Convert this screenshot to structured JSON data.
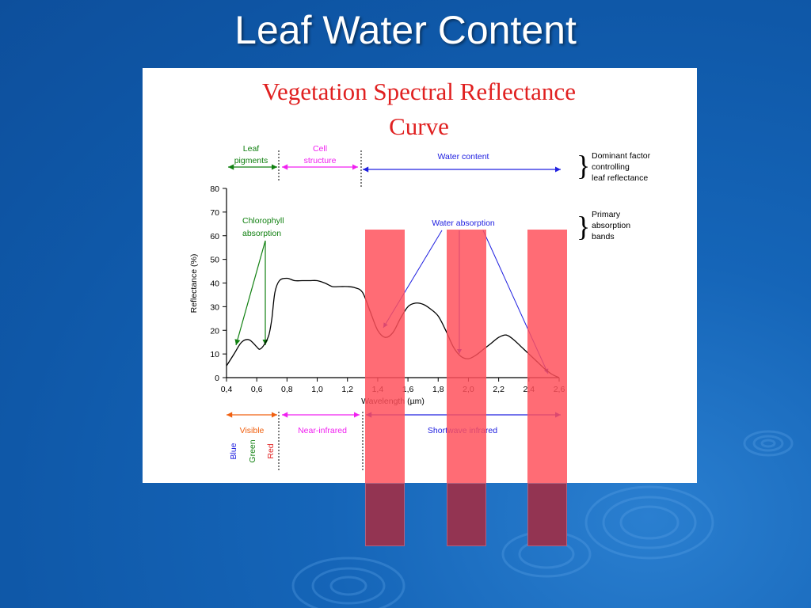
{
  "slide": {
    "title": "Leaf Water Content"
  },
  "chart_data": {
    "type": "line",
    "title": "Vegetation Spectral Reflectance Curve",
    "title_lines": [
      "Vegetation Spectral Reflectance",
      "Curve"
    ],
    "xlabel": "Wavelength (µm)",
    "ylabel": "Reflectance (%)",
    "xlim": [
      0.4,
      2.6
    ],
    "ylim": [
      0,
      80
    ],
    "xticks": [
      "0,4",
      "0,6",
      "0,8",
      "1,0",
      "1,2",
      "1,4",
      "1,6",
      "1,8",
      "2,0",
      "2,2",
      "2,4",
      "2,6"
    ],
    "yticks": [
      "0",
      "10",
      "20",
      "30",
      "40",
      "50",
      "60",
      "70",
      "80"
    ],
    "series": [
      {
        "x": [
          0.4,
          0.45,
          0.5,
          0.55,
          0.6,
          0.62,
          0.65,
          0.68,
          0.7,
          0.72,
          0.75,
          0.8,
          0.85,
          0.9,
          0.95,
          1.0,
          1.05,
          1.1,
          1.15,
          1.2,
          1.25,
          1.3,
          1.35,
          1.4,
          1.45,
          1.5,
          1.55,
          1.6,
          1.65,
          1.7,
          1.75,
          1.8,
          1.85,
          1.9,
          1.95,
          2.0,
          2.05,
          2.1,
          2.15,
          2.2,
          2.25,
          2.3,
          2.35,
          2.4,
          2.45,
          2.5,
          2.55,
          2.6
        ],
        "values": [
          5,
          10,
          15,
          16,
          13,
          12,
          14,
          18,
          25,
          36,
          41,
          42,
          41,
          41,
          41,
          41,
          40,
          38.5,
          38.5,
          38.5,
          38,
          36,
          28,
          20,
          17,
          19,
          25,
          30,
          31.5,
          31,
          29,
          26,
          20,
          13,
          9,
          8,
          9.5,
          12,
          14.5,
          17,
          18,
          16,
          13,
          10,
          7,
          4,
          1.5,
          0
        ]
      }
    ],
    "curve_color": "#000000",
    "annotations": {
      "chlorophyll": [
        "Chlorophyll",
        "absorption"
      ],
      "water_absorption": "Water absorption",
      "leaf_pigments": [
        "Leaf",
        "pigments"
      ],
      "cell_structure": [
        "Cell",
        "structure"
      ],
      "water_content": "Water content",
      "dominant_factor": [
        "Dominant factor",
        "controlling",
        "leaf reflectance"
      ],
      "primary_bands": [
        "Primary",
        "absorption",
        "bands"
      ],
      "visible": "Visible",
      "near_infrared": "Near-infrared",
      "shortwave_infrared": "Shortwave infrared",
      "blue": "Blue",
      "green": "Green",
      "red": "Red"
    },
    "colors": {
      "title": "#e02020",
      "green": "#108010",
      "magenta": "#f020f0",
      "blue": "#2020e0",
      "orange": "#f06010",
      "red": "#e02020",
      "band_fill": "#ff505a",
      "band_dark": "#933452"
    },
    "highlight_bands_um": [
      [
        1.3,
        1.55
      ],
      [
        1.85,
        2.1
      ],
      [
        2.35,
        2.6
      ]
    ]
  }
}
